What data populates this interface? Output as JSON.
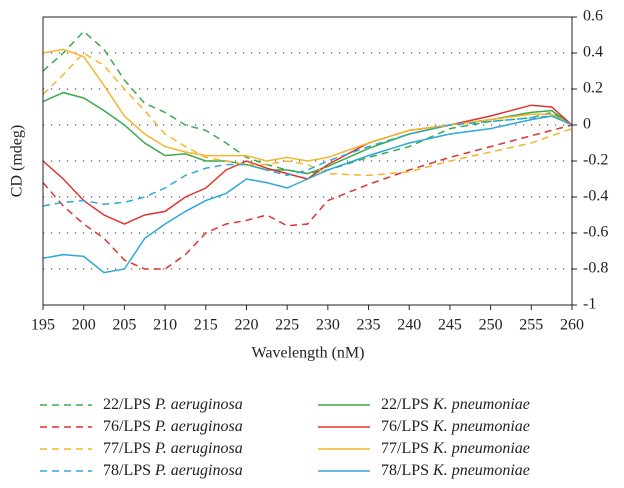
{
  "chart_data": {
    "type": "line",
    "xlabel": "Wavelength (nM)",
    "ylabel": "CD (mdeg)",
    "x": [
      195,
      197.5,
      200,
      202.5,
      205,
      207.5,
      210,
      212.5,
      215,
      217.5,
      220,
      222.5,
      225,
      227.5,
      230,
      235,
      240,
      245,
      250,
      255,
      257.5,
      260
    ],
    "xlim": [
      195,
      260
    ],
    "xticks": [
      195,
      200,
      205,
      210,
      215,
      220,
      225,
      230,
      235,
      240,
      245,
      250,
      255,
      260
    ],
    "ylim": [
      -1,
      0.6
    ],
    "yticks": [
      -1,
      -0.8,
      -0.6,
      -0.4,
      -0.2,
      0,
      0.2,
      0.4,
      0.6
    ],
    "y_axis_side": "right",
    "grid": true,
    "series": [
      {
        "name": "22/LPS P. aeruginosa",
        "color": "#3aaa4a",
        "linestyle": "dashed",
        "values": [
          0.3,
          0.4,
          0.52,
          0.42,
          0.25,
          0.12,
          0.07,
          0.0,
          -0.03,
          -0.1,
          -0.18,
          -0.22,
          -0.25,
          -0.27,
          -0.25,
          -0.18,
          -0.12,
          -0.02,
          0.02,
          0.04,
          0.07,
          0
        ]
      },
      {
        "name": "22/LPS K. pneumoniae",
        "color": "#3aaa4a",
        "linestyle": "solid",
        "values": [
          0.13,
          0.18,
          0.15,
          0.08,
          0.0,
          -0.1,
          -0.17,
          -0.16,
          -0.2,
          -0.2,
          -0.22,
          -0.25,
          -0.25,
          -0.27,
          -0.23,
          -0.13,
          -0.05,
          0.0,
          0.03,
          0.07,
          0.08,
          0
        ]
      },
      {
        "name": "76/LPS P. aeruginosa",
        "color": "#e0322e",
        "linestyle": "dashed",
        "values": [
          -0.32,
          -0.45,
          -0.55,
          -0.63,
          -0.75,
          -0.8,
          -0.8,
          -0.72,
          -0.6,
          -0.55,
          -0.53,
          -0.5,
          -0.56,
          -0.55,
          -0.42,
          -0.33,
          -0.25,
          -0.18,
          -0.12,
          -0.06,
          -0.03,
          0
        ]
      },
      {
        "name": "76/LPS K. pneumoniae",
        "color": "#e0322e",
        "linestyle": "solid",
        "values": [
          -0.2,
          -0.3,
          -0.42,
          -0.5,
          -0.55,
          -0.5,
          -0.48,
          -0.4,
          -0.35,
          -0.25,
          -0.2,
          -0.24,
          -0.27,
          -0.3,
          -0.22,
          -0.1,
          -0.03,
          0.0,
          0.05,
          0.11,
          0.1,
          0
        ]
      },
      {
        "name": "77/LPS P. aeruginosa",
        "color": "#f5b52c",
        "linestyle": "dashed",
        "values": [
          0.17,
          0.28,
          0.4,
          0.33,
          0.2,
          0.08,
          -0.05,
          -0.12,
          -0.18,
          -0.2,
          -0.22,
          -0.22,
          -0.2,
          -0.22,
          -0.27,
          -0.28,
          -0.26,
          -0.2,
          -0.15,
          -0.1,
          -0.06,
          -0.02
        ]
      },
      {
        "name": "77/LPS K. pneumoniae",
        "color": "#f5b52c",
        "linestyle": "solid",
        "values": [
          0.4,
          0.42,
          0.38,
          0.22,
          0.05,
          -0.05,
          -0.12,
          -0.15,
          -0.17,
          -0.17,
          -0.17,
          -0.2,
          -0.18,
          -0.2,
          -0.18,
          -0.1,
          -0.03,
          0.0,
          0.03,
          0.06,
          0.06,
          0
        ]
      },
      {
        "name": "78/LPS P. aeruginosa",
        "color": "#2ea8d8",
        "linestyle": "dashed",
        "values": [
          -0.45,
          -0.43,
          -0.42,
          -0.44,
          -0.43,
          -0.4,
          -0.35,
          -0.28,
          -0.24,
          -0.22,
          -0.22,
          -0.25,
          -0.28,
          -0.25,
          -0.2,
          -0.12,
          -0.05,
          0.0,
          0.02,
          0.04,
          0.05,
          0
        ]
      },
      {
        "name": "78/LPS K. pneumoniae",
        "color": "#2ea8d8",
        "linestyle": "solid",
        "values": [
          -0.74,
          -0.72,
          -0.73,
          -0.82,
          -0.8,
          -0.63,
          -0.55,
          -0.48,
          -0.42,
          -0.38,
          -0.3,
          -0.32,
          -0.35,
          -0.3,
          -0.25,
          -0.17,
          -0.1,
          -0.05,
          -0.02,
          0.03,
          0.05,
          0
        ]
      }
    ]
  }
}
